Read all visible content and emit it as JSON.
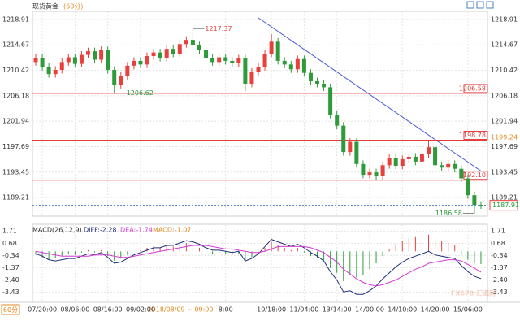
{
  "chart_data": {
    "type": "candlestick",
    "title": "现货黄金",
    "interval": "(60分)",
    "period": "60分",
    "categories": [
      null,
      "07/20:00",
      null,
      null,
      null,
      null,
      "08/06:00",
      null,
      null,
      null,
      null,
      "08/16:00",
      null,
      null,
      null,
      null,
      "09/02:00",
      null,
      null,
      null,
      null,
      null,
      null,
      null,
      null,
      null,
      null,
      null,
      null,
      "8:00",
      null,
      null,
      null,
      null,
      null,
      null,
      "10/18:00",
      null,
      null,
      null,
      null,
      "11/04:00",
      null,
      null,
      null,
      null,
      "13/14:00",
      null,
      null,
      null,
      null,
      "14/00:00",
      null,
      null,
      null,
      null,
      "14/10:00",
      null,
      null,
      null,
      null,
      "14/20:00",
      null,
      null,
      null,
      null,
      "15/06:00",
      null,
      null
    ],
    "crosshair_time": "2018/08/09 ~ 09:00",
    "open": [
      1211.8,
      1212.5,
      1211.0,
      1209.8,
      1210.5,
      1211.8,
      1212.6,
      1211.5,
      1213.0,
      1213.6,
      1212.2,
      1213.8,
      1210.5,
      1208.0,
      1209.5,
      1211.2,
      1212.0,
      1211.4,
      1212.8,
      1213.4,
      1212.5,
      1214.0,
      1213.2,
      1214.8,
      1215.5,
      1214.6,
      1213.8,
      1212.5,
      1211.8,
      1212.6,
      1212.0,
      1211.6,
      1212.4,
      1208.2,
      1210.2,
      1211.0,
      1213.2,
      1215.2,
      1212.0,
      1211.4,
      1210.6,
      1212.3,
      1210.0,
      1208.6,
      1208.2,
      1207.6,
      1203.0,
      1201.2,
      1196.8,
      1198.5,
      1194.8,
      1193.0,
      1193.4,
      1192.8,
      1194.6,
      1195.8,
      1194.5,
      1195.6,
      1196.0,
      1195.2,
      1196.4,
      1197.6,
      1194.6,
      1194.2,
      1194.8,
      1194.0,
      1192.4,
      1189.6,
      1188.0
    ],
    "high": [
      1213.1,
      1213.1,
      1211.6,
      1211.1,
      1212.4,
      1213.2,
      1213.2,
      1213.6,
      1214.2,
      1214.2,
      1214.4,
      1214.4,
      1211.1,
      1210.1,
      1211.8,
      1212.6,
      1212.6,
      1213.4,
      1214.0,
      1214.0,
      1214.6,
      1214.6,
      1215.4,
      1216.1,
      1217.37,
      1215.2,
      1214.4,
      1213.1,
      1213.2,
      1213.2,
      1212.6,
      1213.0,
      1213.0,
      1210.8,
      1211.6,
      1213.8,
      1216.5,
      1215.8,
      1212.6,
      1212.0,
      1212.9,
      1212.9,
      1210.6,
      1209.2,
      1208.8,
      1208.2,
      1203.6,
      1201.8,
      1199.1,
      1199.1,
      1195.4,
      1194.0,
      1194.0,
      1195.2,
      1196.4,
      1196.4,
      1196.2,
      1196.6,
      1196.6,
      1197.0,
      1198.6,
      1198.2,
      1195.2,
      1195.4,
      1195.4,
      1194.6,
      1193.0,
      1190.2,
      1188.6
    ],
    "low": [
      1211.2,
      1210.4,
      1209.2,
      1209.2,
      1209.9,
      1211.2,
      1210.9,
      1210.9,
      1212.4,
      1211.6,
      1211.6,
      1209.9,
      1206.62,
      1207.4,
      1208.9,
      1210.6,
      1210.8,
      1210.8,
      1212.2,
      1211.9,
      1211.9,
      1212.6,
      1212.6,
      1214.2,
      1214.0,
      1213.2,
      1211.9,
      1211.2,
      1211.2,
      1211.4,
      1211.0,
      1211.0,
      1207.0,
      1207.6,
      1209.6,
      1210.4,
      1212.6,
      1211.4,
      1210.8,
      1210.0,
      1210.0,
      1209.4,
      1208.0,
      1207.6,
      1207.0,
      1202.4,
      1200.6,
      1196.2,
      1196.2,
      1194.2,
      1192.4,
      1192.4,
      1192.2,
      1192.2,
      1194.0,
      1193.9,
      1193.9,
      1195.0,
      1194.6,
      1194.6,
      1195.8,
      1194.0,
      1193.6,
      1193.6,
      1193.4,
      1191.8,
      1189.0,
      1186.58,
      1187.3
    ],
    "close": [
      1212.5,
      1211.0,
      1209.8,
      1210.5,
      1211.8,
      1212.6,
      1211.5,
      1213.0,
      1213.6,
      1212.2,
      1213.8,
      1210.5,
      1208.0,
      1209.5,
      1211.2,
      1212.0,
      1211.4,
      1212.8,
      1213.4,
      1212.5,
      1214.0,
      1213.2,
      1214.8,
      1215.5,
      1214.6,
      1213.8,
      1212.5,
      1211.8,
      1212.6,
      1212.0,
      1211.6,
      1212.4,
      1208.2,
      1210.2,
      1211.0,
      1213.2,
      1215.2,
      1212.0,
      1211.4,
      1210.6,
      1212.3,
      1210.0,
      1208.6,
      1208.2,
      1207.6,
      1203.0,
      1201.2,
      1196.8,
      1198.5,
      1194.8,
      1193.0,
      1193.4,
      1192.8,
      1194.6,
      1195.8,
      1194.5,
      1195.6,
      1196.0,
      1195.2,
      1196.4,
      1197.6,
      1194.6,
      1194.2,
      1194.8,
      1194.0,
      1192.4,
      1189.6,
      1188.0,
      1187.91
    ],
    "up_color": "#e8413d",
    "down_color": "#2e9a3a",
    "ylim": [
      1186.1,
      1220.26
    ],
    "yticks": [
      1189.21,
      1193.45,
      1197.69,
      1201.94,
      1206.18,
      1210.42,
      1214.67,
      1218.91
    ],
    "grid": true,
    "levels": [
      1206.58,
      1198.78,
      {
        "value": 1192.1,
        "label": "1192.10"
      }
    ],
    "level_color": "#e03c3c",
    "last_price": 1187.91,
    "marker_price": 1199.24,
    "price_labels": [
      1217.37,
      1206.62,
      1186.58
    ],
    "macd": {
      "title": "MACD(26,12,9)",
      "diff_label": "DIFF:-2.28",
      "dea_label": "DEA:-1.74",
      "macd_label": "MACD:-1.07",
      "hist": [
        -0.3,
        -0.5,
        -0.7,
        -0.6,
        -0.4,
        -0.2,
        -0.3,
        -0.1,
        0.1,
        -0.1,
        0.1,
        -0.4,
        -0.8,
        -0.6,
        -0.3,
        0.0,
        0.1,
        0.3,
        0.4,
        0.3,
        0.5,
        0.4,
        0.6,
        0.7,
        0.5,
        0.3,
        0.0,
        -0.2,
        -0.1,
        -0.2,
        -0.3,
        -0.2,
        -0.8,
        -0.5,
        -0.2,
        0.3,
        0.8,
        0.5,
        0.3,
        0.1,
        0.3,
        -0.1,
        -0.4,
        -0.6,
        -0.8,
        -1.4,
        -1.8,
        -2.5,
        -2.0,
        -2.2,
        -2.0,
        -1.5,
        -1.0,
        -0.4,
        0.2,
        0.6,
        0.9,
        1.1,
        1.2,
        1.3,
        1.4,
        1.1,
        0.9,
        0.7,
        0.5,
        -0.2,
        -0.7,
        -1.0,
        -1.07
      ],
      "diff": {
        "color": "#1f2f7a",
        "values": [
          -0.2,
          -0.4,
          -0.7,
          -0.8,
          -0.7,
          -0.6,
          -0.6,
          -0.4,
          -0.2,
          -0.3,
          -0.1,
          -0.5,
          -1.0,
          -0.9,
          -0.6,
          -0.3,
          -0.1,
          0.1,
          0.3,
          0.3,
          0.5,
          0.5,
          0.7,
          0.9,
          0.8,
          0.6,
          0.3,
          0.1,
          0.1,
          0.0,
          -0.1,
          0.0,
          -0.8,
          -0.6,
          -0.2,
          0.4,
          1.0,
          0.8,
          0.6,
          0.4,
          0.6,
          0.3,
          -0.1,
          -0.4,
          -0.8,
          -1.7,
          -2.4,
          -3.4,
          -3.3,
          -3.6,
          -3.6,
          -3.3,
          -2.9,
          -2.3,
          -1.8,
          -1.3,
          -0.9,
          -0.6,
          -0.4,
          -0.2,
          0.0,
          -0.3,
          -0.4,
          -0.5,
          -0.6,
          -1.2,
          -1.7,
          -2.1,
          -2.28
        ]
      },
      "dea": {
        "color": "#d63ad6",
        "values": [
          0.0,
          -0.1,
          -0.2,
          -0.3,
          -0.4,
          -0.4,
          -0.4,
          -0.4,
          -0.4,
          -0.3,
          -0.3,
          -0.3,
          -0.4,
          -0.5,
          -0.5,
          -0.4,
          -0.3,
          -0.2,
          -0.1,
          0.0,
          0.1,
          0.2,
          0.3,
          0.4,
          0.5,
          0.5,
          0.5,
          0.4,
          0.3,
          0.2,
          0.2,
          0.1,
          0.0,
          -0.1,
          -0.1,
          0.0,
          0.2,
          0.4,
          0.4,
          0.4,
          0.4,
          0.4,
          0.3,
          0.1,
          -0.1,
          -0.5,
          -0.9,
          -1.5,
          -1.9,
          -2.3,
          -2.6,
          -2.8,
          -2.9,
          -2.8,
          -2.6,
          -2.4,
          -2.1,
          -1.8,
          -1.5,
          -1.3,
          -1.0,
          -0.9,
          -0.8,
          -0.7,
          -0.7,
          -0.8,
          -1.1,
          -1.4,
          -1.74
        ]
      },
      "ylim": [
        -4.27,
        2.27
      ],
      "yticks": [
        1.71,
        0.68,
        -0.34,
        -1.37,
        {
          "value": -2.4,
          "label": "-2.40"
        },
        -3.43
      ]
    },
    "watermark": "FX678 汇通网"
  }
}
